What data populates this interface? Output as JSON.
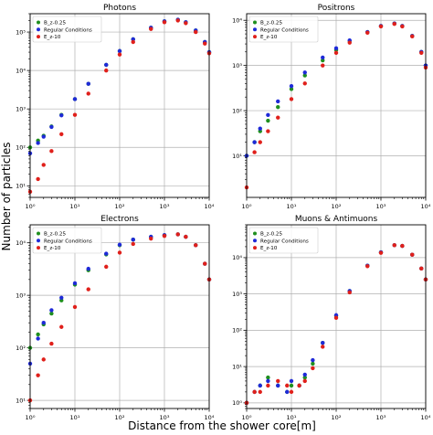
{
  "figure": {
    "ylabel": "Number of particles",
    "xlabel": "Distance from the shower core[m]"
  },
  "colors": {
    "B_z-0.25": "#1f8f1f",
    "Regular Conditions": "#1f2ad8",
    "E_z-10": "#e0201b"
  },
  "chart_data": [
    {
      "type": "scatter",
      "title": "Photons",
      "xscale": "log",
      "yscale": "log",
      "xlim": [
        1,
        10000
      ],
      "ylim": [
        5,
        300000
      ],
      "xticks": [
        1,
        10,
        100,
        1000,
        10000
      ],
      "xtick_labels": [
        "10⁰",
        "10¹",
        "10²",
        "10³",
        "10⁴"
      ],
      "yticks": [
        10,
        100,
        1000,
        10000,
        100000
      ],
      "ytick_labels": [
        "10¹",
        "10²",
        "10³",
        "10⁴",
        "10⁵"
      ],
      "grid": true,
      "legend": "top-left",
      "series": [
        {
          "name": "B_z-0.25",
          "x": [
            1,
            1.5,
            2,
            3,
            5,
            10,
            20,
            50,
            100,
            200,
            500,
            1000,
            2000,
            3000,
            5000,
            8000,
            10000
          ],
          "y": [
            100,
            150,
            200,
            350,
            700,
            1800,
            4500,
            14000,
            32000,
            65000,
            130000,
            190000,
            210000,
            180000,
            110000,
            55000,
            30000
          ]
        },
        {
          "name": "Regular Conditions",
          "x": [
            1,
            1.5,
            2,
            3,
            5,
            10,
            20,
            50,
            100,
            200,
            500,
            1000,
            2000,
            3000,
            5000,
            8000,
            10000
          ],
          "y": [
            70,
            130,
            190,
            340,
            680,
            1800,
            4500,
            14000,
            32000,
            65000,
            130000,
            190000,
            210000,
            180000,
            110000,
            55000,
            30000
          ]
        },
        {
          "name": "E_z-10",
          "x": [
            1,
            1.5,
            2,
            3,
            5,
            10,
            20,
            50,
            100,
            200,
            500,
            1000,
            2000,
            3000,
            5000,
            8000,
            10000
          ],
          "y": [
            7,
            15,
            35,
            80,
            220,
            700,
            2500,
            10000,
            26000,
            55000,
            120000,
            180000,
            200000,
            170000,
            100000,
            50000,
            28000
          ]
        }
      ]
    },
    {
      "type": "scatter",
      "title": "Positrons",
      "xscale": "log",
      "yscale": "log",
      "xlim": [
        1,
        10000
      ],
      "ylim": [
        1.2,
        14000
      ],
      "xticks": [
        1,
        10,
        100,
        1000,
        10000
      ],
      "xtick_labels": [
        "10⁰",
        "10¹",
        "10²",
        "10³",
        "10⁴"
      ],
      "yticks": [
        10,
        100,
        1000,
        10000
      ],
      "ytick_labels": [
        "10¹",
        "10²",
        "10³",
        "10⁴"
      ],
      "grid": true,
      "legend": "top-left",
      "series": [
        {
          "name": "B_z-0.25",
          "x": [
            1,
            1.5,
            2,
            3,
            5,
            10,
            20,
            50,
            100,
            200,
            500,
            1000,
            2000,
            3000,
            5000,
            8000,
            10000
          ],
          "y": [
            10,
            20,
            35,
            60,
            120,
            300,
            600,
            1300,
            2200,
            3500,
            5500,
            7500,
            8500,
            7500,
            4500,
            2000,
            1000
          ]
        },
        {
          "name": "Regular Conditions",
          "x": [
            1,
            1.5,
            2,
            3,
            5,
            10,
            20,
            50,
            100,
            200,
            500,
            1000,
            2000,
            3000,
            5000,
            8000,
            10000
          ],
          "y": [
            10,
            20,
            40,
            80,
            160,
            350,
            700,
            1500,
            2400,
            3600,
            5500,
            7500,
            8500,
            7500,
            4500,
            2000,
            1000
          ]
        },
        {
          "name": "E_z-10",
          "x": [
            1,
            1.5,
            2,
            3,
            5,
            10,
            20,
            50,
            100,
            200,
            500,
            1000,
            2000,
            3000,
            5000,
            8000,
            10000
          ],
          "y": [
            2,
            12,
            20,
            35,
            70,
            180,
            400,
            1000,
            1900,
            3200,
            5300,
            7300,
            8300,
            7300,
            4400,
            1900,
            900
          ]
        }
      ]
    },
    {
      "type": "scatter",
      "title": "Electrons",
      "xscale": "log",
      "yscale": "log",
      "xlim": [
        1,
        10000
      ],
      "ylim": [
        7,
        22000
      ],
      "xticks": [
        1,
        10,
        100,
        1000,
        10000
      ],
      "xtick_labels": [
        "10⁰",
        "10¹",
        "10²",
        "10³",
        "10⁴"
      ],
      "yticks": [
        10,
        100,
        1000,
        10000
      ],
      "ytick_labels": [
        "10¹",
        "10²",
        "10³",
        "10⁴"
      ],
      "grid": true,
      "legend": "top-left",
      "series": [
        {
          "name": "B_z-0.25",
          "x": [
            1,
            1.5,
            2,
            3,
            5,
            10,
            20,
            50,
            100,
            200,
            500,
            1000,
            2000,
            3000,
            5000,
            8000,
            10000
          ],
          "y": [
            100,
            180,
            280,
            450,
            800,
            1600,
            3000,
            6000,
            9000,
            11500,
            13000,
            14000,
            14500,
            13000,
            9000,
            4000,
            2000
          ]
        },
        {
          "name": "Regular Conditions",
          "x": [
            1,
            1.5,
            2,
            3,
            5,
            10,
            20,
            50,
            100,
            200,
            500,
            1000,
            2000,
            3000,
            5000,
            8000,
            10000
          ],
          "y": [
            50,
            150,
            300,
            520,
            900,
            1700,
            3200,
            6200,
            9200,
            11500,
            13000,
            14000,
            14500,
            13000,
            9000,
            4000,
            2000
          ]
        },
        {
          "name": "E_z-10",
          "x": [
            1,
            1.5,
            2,
            3,
            5,
            10,
            20,
            50,
            100,
            200,
            500,
            1000,
            2000,
            3000,
            5000,
            8000,
            10000
          ],
          "y": [
            10,
            30,
            60,
            120,
            250,
            600,
            1300,
            3500,
            6500,
            9500,
            12000,
            13500,
            14500,
            13000,
            9000,
            4000,
            2000
          ]
        }
      ]
    },
    {
      "type": "scatter",
      "title": "Muons & Antimuons",
      "xscale": "log",
      "yscale": "log",
      "xlim": [
        1,
        10000
      ],
      "ylim": [
        0.7,
        80000
      ],
      "xticks": [
        1,
        10,
        100,
        1000,
        10000
      ],
      "xtick_labels": [
        "10⁰",
        "10¹",
        "10²",
        "10³",
        "10⁴"
      ],
      "yticks": [
        1,
        10,
        100,
        1000,
        10000
      ],
      "ytick_labels": [
        "10⁰",
        "10¹",
        "10²",
        "10³",
        "10⁴"
      ],
      "grid": true,
      "legend": "top-left",
      "series": [
        {
          "name": "B_z-0.25",
          "x": [
            1,
            1.5,
            2,
            3,
            5,
            8,
            10,
            15,
            20,
            30,
            50,
            100,
            200,
            500,
            1000,
            2000,
            3000,
            5000,
            8000,
            10000
          ],
          "y": [
            1,
            2,
            3,
            5,
            3,
            2,
            3,
            3,
            5,
            12,
            45,
            250,
            1200,
            6000,
            14000,
            22000,
            21000,
            12000,
            5000,
            2500
          ]
        },
        {
          "name": "Regular Conditions",
          "x": [
            1,
            1.5,
            2,
            3,
            5,
            8,
            10,
            15,
            20,
            30,
            50,
            100,
            200,
            500,
            1000,
            2000,
            3000,
            5000,
            8000,
            10000
          ],
          "y": [
            1,
            2,
            3,
            4,
            3,
            2,
            4,
            3,
            6,
            15,
            45,
            260,
            1200,
            6000,
            14000,
            22000,
            21000,
            12000,
            5000,
            2500
          ]
        },
        {
          "name": "E_z-10",
          "x": [
            1,
            1.5,
            2,
            3,
            5,
            8,
            10,
            15,
            20,
            30,
            50,
            100,
            200,
            500,
            1000,
            2000,
            3000,
            5000,
            8000,
            10000
          ],
          "y": [
            1,
            2,
            2,
            3,
            4,
            3,
            2,
            3,
            4,
            9,
            35,
            220,
            1100,
            5800,
            13500,
            22000,
            21000,
            12000,
            5000,
            2500
          ]
        }
      ]
    }
  ]
}
